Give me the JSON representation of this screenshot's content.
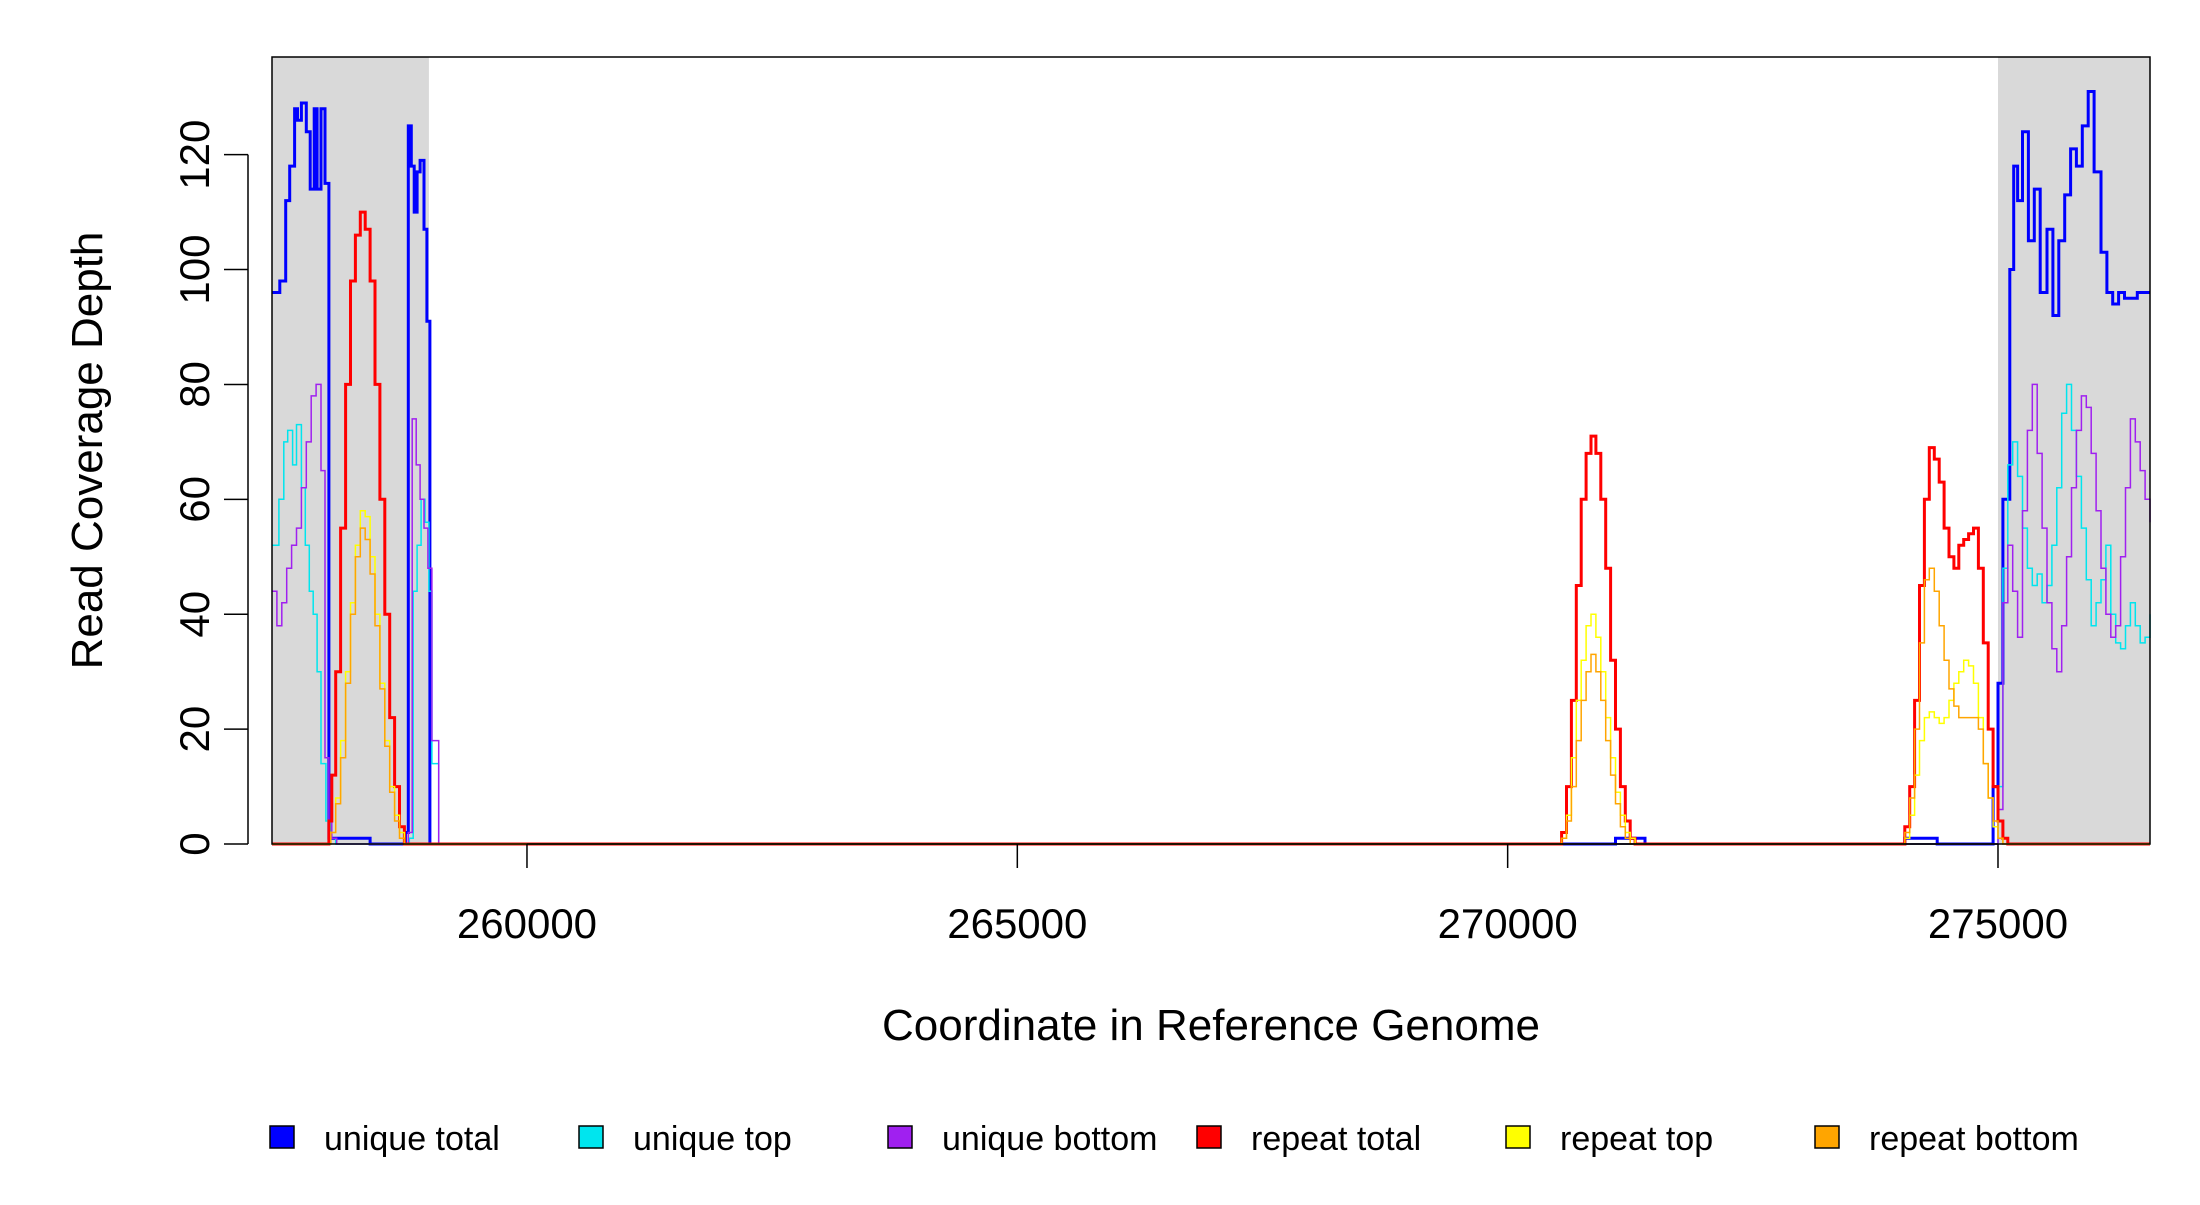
{
  "chart_data": {
    "type": "line",
    "title": "",
    "xlabel": "Coordinate in Reference Genome",
    "ylabel": "Read Coverage Depth",
    "xlim": [
      257400,
      276550
    ],
    "ylim": [
      0,
      137
    ],
    "x_ticks": [
      260000,
      265000,
      270000,
      275000
    ],
    "x_tick_labels": [
      "260000",
      "265000",
      "270000",
      "275000"
    ],
    "y_ticks": [
      0,
      20,
      40,
      60,
      80,
      100,
      120
    ],
    "y_tick_labels": [
      "0",
      "20",
      "40",
      "60",
      "80",
      "100",
      "120"
    ],
    "grid": false,
    "legend": "bottom",
    "shaded_regions": [
      [
        257400,
        259000
      ],
      [
        275000,
        276550
      ]
    ],
    "shade_color": "#d9d9d9",
    "series": [
      {
        "name": "unique total",
        "color": "#0000ff",
        "width": 3,
        "x": [
          257400,
          257480,
          257540,
          257580,
          257630,
          257660,
          257700,
          257750,
          257790,
          257830,
          257860,
          257900,
          257940,
          257980,
          258000,
          258010,
          258100,
          258300,
          258400,
          258700,
          258760,
          258790,
          258820,
          258850,
          258880,
          258910,
          258950,
          258980,
          259010,
          259020,
          259100,
          270550,
          270600,
          271050,
          271100,
          271350,
          271400,
          274000,
          274050,
          274330,
          274380,
          274900,
          274950,
          275000,
          275050,
          275120,
          275160,
          275200,
          275250,
          275310,
          275370,
          275430,
          275500,
          275560,
          275620,
          275680,
          275740,
          275800,
          275860,
          275920,
          275980,
          276050,
          276110,
          276170,
          276230,
          276290,
          276350,
          276420,
          276480,
          276550
        ],
        "y": [
          96,
          98,
          112,
          118,
          128,
          126,
          129,
          124,
          114,
          128,
          114,
          128,
          115,
          1,
          1,
          1,
          1,
          1,
          0,
          0,
          2,
          125,
          118,
          110,
          117,
          119,
          107,
          91,
          0,
          0,
          0,
          0,
          0,
          0,
          1,
          1,
          0,
          0,
          1,
          1,
          0,
          0,
          10,
          28,
          60,
          100,
          118,
          112,
          124,
          105,
          114,
          96,
          107,
          92,
          105,
          113,
          121,
          118,
          125,
          131,
          117,
          103,
          96,
          94,
          96,
          95,
          95,
          96,
          96,
          96
        ]
      },
      {
        "name": "unique top",
        "color": "#00e5ee",
        "width": 1.5,
        "x": [
          257400,
          257470,
          257520,
          257560,
          257610,
          257650,
          257700,
          257740,
          257780,
          257820,
          257860,
          257900,
          257950,
          258000,
          258050,
          258750,
          258800,
          258840,
          258880,
          258920,
          258960,
          259000,
          259030,
          259100,
          270550,
          271400,
          274000,
          274950,
          275000,
          275050,
          275100,
          275150,
          275200,
          275250,
          275300,
          275350,
          275400,
          275450,
          275500,
          275550,
          275600,
          275650,
          275700,
          275750,
          275800,
          275850,
          275900,
          275950,
          276000,
          276050,
          276100,
          276150,
          276200,
          276250,
          276300,
          276350,
          276400,
          276450,
          276500,
          276550
        ],
        "y": [
          52,
          60,
          70,
          72,
          66,
          73,
          62,
          52,
          44,
          40,
          30,
          14,
          4,
          1,
          0,
          0,
          1,
          44,
          52,
          60,
          56,
          44,
          14,
          0,
          0,
          0,
          0,
          0,
          10,
          48,
          66,
          70,
          64,
          55,
          48,
          45,
          47,
          42,
          45,
          52,
          62,
          75,
          80,
          72,
          64,
          55,
          46,
          38,
          42,
          46,
          52,
          40,
          35,
          34,
          38,
          42,
          38,
          35,
          36,
          40
        ]
      },
      {
        "name": "unique bottom",
        "color": "#a020f0",
        "width": 1.5,
        "x": [
          257400,
          257450,
          257500,
          257550,
          257600,
          257650,
          257700,
          257750,
          257800,
          257850,
          257900,
          257940,
          257980,
          258010,
          258060,
          258750,
          258790,
          258830,
          258870,
          258910,
          258950,
          258990,
          259030,
          259100,
          270550,
          271400,
          274000,
          274950,
          275000,
          275050,
          275100,
          275150,
          275200,
          275250,
          275300,
          275350,
          275400,
          275450,
          275500,
          275550,
          275600,
          275650,
          275700,
          275750,
          275800,
          275850,
          275900,
          275950,
          276000,
          276050,
          276100,
          276150,
          276200,
          276250,
          276300,
          276350,
          276400,
          276450,
          276500,
          276550
        ],
        "y": [
          44,
          38,
          42,
          48,
          52,
          55,
          62,
          70,
          78,
          80,
          65,
          15,
          4,
          1,
          0,
          0,
          2,
          74,
          66,
          60,
          55,
          48,
          18,
          0,
          0,
          0,
          0,
          0,
          6,
          42,
          52,
          44,
          36,
          58,
          72,
          80,
          68,
          55,
          42,
          34,
          30,
          38,
          50,
          62,
          72,
          78,
          76,
          68,
          58,
          48,
          40,
          36,
          38,
          50,
          62,
          74,
          70,
          65,
          60,
          56
        ]
      },
      {
        "name": "repeat total",
        "color": "#ff0000",
        "width": 3,
        "x": [
          257400,
          257950,
          257980,
          258010,
          258050,
          258100,
          258150,
          258200,
          258250,
          258300,
          258350,
          258400,
          258450,
          258500,
          258550,
          258600,
          258650,
          258700,
          258750,
          258800,
          258850,
          270500,
          270550,
          270600,
          270650,
          270700,
          270750,
          270800,
          270850,
          270900,
          270950,
          271000,
          271050,
          271100,
          271150,
          271200,
          271250,
          271300,
          271350,
          274000,
          274050,
          274100,
          274150,
          274200,
          274250,
          274300,
          274350,
          274400,
          274450,
          274500,
          274550,
          274600,
          274650,
          274700,
          274750,
          274800,
          274850,
          274900,
          274950,
          275000,
          275050,
          275100,
          275150,
          276550
        ],
        "y": [
          0,
          0,
          4,
          12,
          30,
          55,
          80,
          98,
          106,
          110,
          107,
          98,
          80,
          60,
          40,
          22,
          10,
          3,
          0,
          0,
          0,
          0,
          2,
          10,
          25,
          45,
          60,
          68,
          71,
          68,
          60,
          48,
          32,
          20,
          10,
          4,
          1,
          0,
          0,
          0,
          3,
          10,
          25,
          45,
          60,
          69,
          67,
          63,
          55,
          50,
          48,
          52,
          53,
          54,
          55,
          48,
          35,
          20,
          10,
          4,
          1,
          0,
          0,
          0
        ]
      },
      {
        "name": "repeat top",
        "color": "#ffff00",
        "width": 1.5,
        "x": [
          257400,
          257950,
          258000,
          258050,
          258100,
          258150,
          258200,
          258250,
          258300,
          258350,
          258400,
          258450,
          258500,
          258550,
          258600,
          258650,
          258700,
          258750,
          258800,
          270500,
          270550,
          270600,
          270650,
          270700,
          270750,
          270800,
          270850,
          270900,
          270950,
          271000,
          271050,
          271100,
          271150,
          271200,
          271250,
          271300,
          274000,
          274050,
          274100,
          274150,
          274200,
          274250,
          274300,
          274350,
          274400,
          274450,
          274500,
          274550,
          274600,
          274650,
          274700,
          274750,
          274800,
          274850,
          274900,
          274950,
          275000,
          275050,
          275100,
          276550
        ],
        "y": [
          0,
          0,
          2,
          8,
          18,
          30,
          42,
          52,
          58,
          57,
          50,
          40,
          28,
          18,
          10,
          5,
          2,
          0,
          0,
          0,
          1,
          5,
          15,
          25,
          32,
          38,
          40,
          36,
          30,
          22,
          15,
          9,
          5,
          2,
          1,
          0,
          0,
          1,
          5,
          12,
          18,
          22,
          23,
          22,
          21,
          22,
          25,
          28,
          30,
          32,
          31,
          28,
          22,
          14,
          8,
          3,
          1,
          0,
          0,
          0
        ]
      },
      {
        "name": "repeat bottom",
        "color": "#ffa500",
        "width": 1.5,
        "x": [
          257400,
          257950,
          258000,
          258050,
          258100,
          258150,
          258200,
          258250,
          258300,
          258350,
          258400,
          258450,
          258500,
          258550,
          258600,
          258650,
          258700,
          258750,
          258800,
          270500,
          270550,
          270600,
          270650,
          270700,
          270750,
          270800,
          270850,
          270900,
          270950,
          271000,
          271050,
          271100,
          271150,
          271200,
          271250,
          271300,
          274000,
          274050,
          274100,
          274150,
          274200,
          274250,
          274300,
          274350,
          274400,
          274450,
          274500,
          274550,
          274600,
          274650,
          274700,
          274750,
          274800,
          274850,
          274900,
          274950,
          275000,
          275050,
          275100,
          276550
        ],
        "y": [
          0,
          0,
          2,
          7,
          15,
          28,
          40,
          50,
          55,
          53,
          47,
          38,
          27,
          17,
          9,
          4,
          1,
          0,
          0,
          0,
          1,
          4,
          10,
          18,
          25,
          30,
          33,
          30,
          25,
          18,
          12,
          7,
          3,
          1,
          0,
          0,
          0,
          2,
          8,
          20,
          35,
          46,
          48,
          44,
          38,
          32,
          27,
          24,
          22,
          22,
          22,
          22,
          20,
          14,
          8,
          4,
          1,
          0,
          0,
          0
        ]
      }
    ]
  }
}
